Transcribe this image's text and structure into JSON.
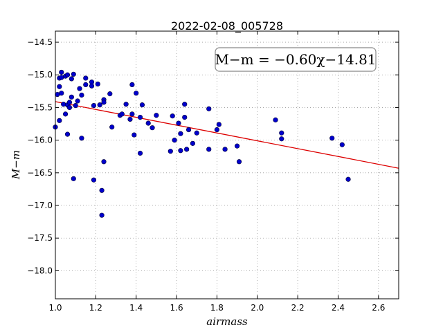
{
  "chart_data": {
    "type": "scatter",
    "title": "2022-02-08_005728",
    "xlabel": "airmass",
    "ylabel": "M−m",
    "xlim": [
      1.0,
      2.7
    ],
    "ylim": [
      -18.43,
      -14.33
    ],
    "y_inverted": true,
    "grid": true,
    "x_ticks": [
      1.0,
      1.2,
      1.4,
      1.6,
      1.8,
      2.0,
      2.2,
      2.4,
      2.6
    ],
    "x_tick_labels": [
      "1.0",
      "1.2",
      "1.4",
      "1.6",
      "1.8",
      "2.0",
      "2.2",
      "2.4",
      "2.6"
    ],
    "y_ticks": [
      -14.5,
      -15.0,
      -15.5,
      -16.0,
      -16.5,
      -17.0,
      -17.5,
      -18.0
    ],
    "y_tick_labels": [
      "−14.5",
      "−15.0",
      "−15.5",
      "−16.0",
      "−16.5",
      "−17.0",
      "−17.5",
      "−18.0"
    ],
    "annotation": "M−m = −0.60χ−14.81",
    "colors": {
      "points": "#0000cc",
      "fit_line": "#dd0000",
      "grid": "#999999"
    },
    "fit_line": {
      "slope": -0.6,
      "intercept": -14.81,
      "x_range": [
        1.0,
        2.7
      ]
    },
    "points": [
      {
        "x": 1.0,
        "y": -15.8
      },
      {
        "x": 1.01,
        "y": -15.3
      },
      {
        "x": 1.02,
        "y": -15.05
      },
      {
        "x": 1.02,
        "y": -15.18
      },
      {
        "x": 1.02,
        "y": -15.7
      },
      {
        "x": 1.03,
        "y": -14.96
      },
      {
        "x": 1.03,
        "y": -15.04
      },
      {
        "x": 1.03,
        "y": -15.28
      },
      {
        "x": 1.04,
        "y": -15.45
      },
      {
        "x": 1.05,
        "y": -15.02
      },
      {
        "x": 1.05,
        "y": -15.6
      },
      {
        "x": 1.06,
        "y": -15.91
      },
      {
        "x": 1.06,
        "y": -15.0
      },
      {
        "x": 1.06,
        "y": -15.46
      },
      {
        "x": 1.07,
        "y": -15.42
      },
      {
        "x": 1.07,
        "y": -15.5
      },
      {
        "x": 1.08,
        "y": -15.06
      },
      {
        "x": 1.08,
        "y": -15.34
      },
      {
        "x": 1.09,
        "y": -14.99
      },
      {
        "x": 1.09,
        "y": -16.59
      },
      {
        "x": 1.1,
        "y": -15.47
      },
      {
        "x": 1.11,
        "y": -15.4
      },
      {
        "x": 1.12,
        "y": -15.21
      },
      {
        "x": 1.13,
        "y": -15.31
      },
      {
        "x": 1.13,
        "y": -15.97
      },
      {
        "x": 1.15,
        "y": -15.05
      },
      {
        "x": 1.15,
        "y": -15.15
      },
      {
        "x": 1.18,
        "y": -15.11
      },
      {
        "x": 1.18,
        "y": -15.17
      },
      {
        "x": 1.19,
        "y": -15.47
      },
      {
        "x": 1.19,
        "y": -16.61
      },
      {
        "x": 1.21,
        "y": -15.14
      },
      {
        "x": 1.22,
        "y": -15.46
      },
      {
        "x": 1.23,
        "y": -16.77
      },
      {
        "x": 1.23,
        "y": -17.15
      },
      {
        "x": 1.24,
        "y": -15.38
      },
      {
        "x": 1.24,
        "y": -15.42
      },
      {
        "x": 1.24,
        "y": -16.33
      },
      {
        "x": 1.27,
        "y": -15.29
      },
      {
        "x": 1.28,
        "y": -15.8
      },
      {
        "x": 1.32,
        "y": -15.62
      },
      {
        "x": 1.33,
        "y": -15.6
      },
      {
        "x": 1.35,
        "y": -15.45
      },
      {
        "x": 1.37,
        "y": -15.68
      },
      {
        "x": 1.38,
        "y": -15.15
      },
      {
        "x": 1.38,
        "y": -15.6
      },
      {
        "x": 1.39,
        "y": -15.92
      },
      {
        "x": 1.4,
        "y": -15.28
      },
      {
        "x": 1.42,
        "y": -15.65
      },
      {
        "x": 1.42,
        "y": -16.2
      },
      {
        "x": 1.43,
        "y": -15.46
      },
      {
        "x": 1.46,
        "y": -15.74
      },
      {
        "x": 1.48,
        "y": -15.81
      },
      {
        "x": 1.5,
        "y": -15.62
      },
      {
        "x": 1.57,
        "y": -16.17
      },
      {
        "x": 1.58,
        "y": -15.63
      },
      {
        "x": 1.59,
        "y": -16.0
      },
      {
        "x": 1.61,
        "y": -15.74
      },
      {
        "x": 1.62,
        "y": -15.9
      },
      {
        "x": 1.62,
        "y": -16.16
      },
      {
        "x": 1.64,
        "y": -15.45
      },
      {
        "x": 1.64,
        "y": -15.65
      },
      {
        "x": 1.65,
        "y": -16.14
      },
      {
        "x": 1.66,
        "y": -15.84
      },
      {
        "x": 1.68,
        "y": -16.05
      },
      {
        "x": 1.7,
        "y": -15.89
      },
      {
        "x": 1.76,
        "y": -15.52
      },
      {
        "x": 1.76,
        "y": -16.14
      },
      {
        "x": 1.8,
        "y": -15.84
      },
      {
        "x": 1.81,
        "y": -15.76
      },
      {
        "x": 1.84,
        "y": -16.14
      },
      {
        "x": 1.9,
        "y": -16.09
      },
      {
        "x": 1.91,
        "y": -16.33
      },
      {
        "x": 2.09,
        "y": -15.69
      },
      {
        "x": 2.12,
        "y": -15.89
      },
      {
        "x": 2.12,
        "y": -15.98
      },
      {
        "x": 2.37,
        "y": -15.97
      },
      {
        "x": 2.42,
        "y": -16.07
      },
      {
        "x": 2.45,
        "y": -16.6
      }
    ]
  }
}
